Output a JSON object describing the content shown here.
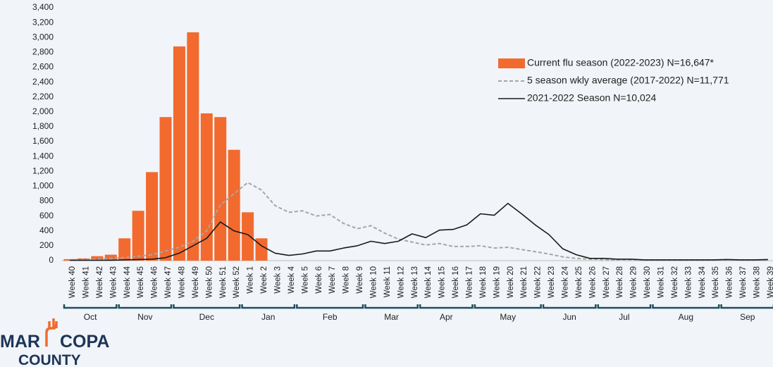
{
  "chart_data": {
    "type": "bar",
    "categories": [
      "Week 40",
      "Week 41",
      "Week 42",
      "Week 43",
      "Week 44",
      "Week 45",
      "Week 46",
      "Week 47",
      "Week 48",
      "Week 49",
      "Week 50",
      "Week 51",
      "Week 52",
      "Week 1",
      "Week 2",
      "Week 3",
      "Week 4",
      "Week 5",
      "Week 6",
      "Week 7",
      "Week 8",
      "Week 9",
      "Week 10",
      "Week 11",
      "Week 12",
      "Week 13",
      "Week 14",
      "Week 15",
      "Week 16",
      "Week 17",
      "Week 18",
      "Week 19",
      "Week 20",
      "Week 21",
      "Week 22",
      "Week 23",
      "Week 24",
      "Week 25",
      "Week 26",
      "Week 27",
      "Week 28",
      "Week 29",
      "Week 30",
      "Week 31",
      "Week 32",
      "Week 33",
      "Week 34",
      "Week 35",
      "Week 36",
      "Week 37",
      "Week 38",
      "Week 39"
    ],
    "x_groups": [
      {
        "label": "Oct",
        "span": 4
      },
      {
        "label": "Nov",
        "span": 4
      },
      {
        "label": "Dec",
        "span": 5
      },
      {
        "label": "Jan",
        "span": 4
      },
      {
        "label": "Feb",
        "span": 5
      },
      {
        "label": "Mar",
        "span": 4
      },
      {
        "label": "Apr",
        "span": 4
      },
      {
        "label": "May",
        "span": 5
      },
      {
        "label": "Jun",
        "span": 4
      },
      {
        "label": "Jul",
        "span": 4
      },
      {
        "label": "Aug",
        "span": 5
      },
      {
        "label": "Sep",
        "span": 4
      }
    ],
    "series": [
      {
        "name": "Current flu season (2022-2023) N=16,647*",
        "type": "bar",
        "color": "#f26a2e",
        "values": [
          20,
          30,
          60,
          80,
          300,
          670,
          1190,
          1930,
          2880,
          3070,
          1980,
          1930,
          1490,
          650,
          300,
          null,
          null,
          null,
          null,
          null,
          null,
          null,
          null,
          null,
          null,
          null,
          null,
          null,
          null,
          null,
          null,
          null,
          null,
          null,
          null,
          null,
          null,
          null,
          null,
          null,
          null,
          null,
          null,
          null,
          null,
          null,
          null,
          null,
          null,
          null,
          null,
          null
        ]
      },
      {
        "name": "5 season wkly average (2017-2022) N=11,771",
        "type": "line",
        "dashed": true,
        "color": "#a6a6a6",
        "values": [
          10,
          15,
          20,
          30,
          40,
          60,
          80,
          130,
          180,
          260,
          400,
          750,
          900,
          1050,
          950,
          740,
          650,
          670,
          600,
          620,
          500,
          430,
          470,
          370,
          290,
          250,
          210,
          230,
          190,
          190,
          200,
          170,
          180,
          150,
          120,
          90,
          50,
          30,
          20,
          15,
          10,
          10,
          8,
          8,
          8,
          8,
          8,
          8,
          10,
          10,
          8,
          8
        ]
      },
      {
        "name": "2021-2022 Season N=10,024",
        "type": "line",
        "dashed": false,
        "color": "#1a1a1a",
        "values": [
          5,
          5,
          5,
          5,
          10,
          15,
          20,
          40,
          100,
          200,
          300,
          520,
          400,
          350,
          200,
          100,
          70,
          90,
          130,
          130,
          170,
          200,
          260,
          230,
          260,
          360,
          310,
          410,
          420,
          480,
          630,
          610,
          770,
          630,
          480,
          350,
          160,
          80,
          30,
          30,
          20,
          20,
          10,
          10,
          10,
          10,
          10,
          10,
          15,
          10,
          10,
          15
        ]
      }
    ],
    "ylim": [
      0,
      3400
    ],
    "yticks": [
      0,
      200,
      400,
      600,
      800,
      {
        "value": 1000,
        "label": "1,000"
      },
      {
        "value": 1200,
        "label": "1,200"
      },
      {
        "value": 1400,
        "label": "1,400"
      },
      {
        "value": 1600,
        "label": "1,600"
      },
      {
        "value": 1800,
        "label": "1,800"
      },
      {
        "value": 2000,
        "label": "2,000"
      },
      {
        "value": 2200,
        "label": "2,200"
      },
      {
        "value": 2400,
        "label": "2,400"
      },
      {
        "value": 2600,
        "label": "2,600"
      },
      {
        "value": 2800,
        "label": "2,800"
      },
      {
        "value": 3000,
        "label": "3,000"
      },
      {
        "value": 3200,
        "label": "3,200"
      },
      {
        "value": 3400,
        "label": "3,400"
      }
    ],
    "legend": "right"
  },
  "logo": {
    "left": "MAR",
    "right": "COPA",
    "bottom": "COUNTY"
  }
}
